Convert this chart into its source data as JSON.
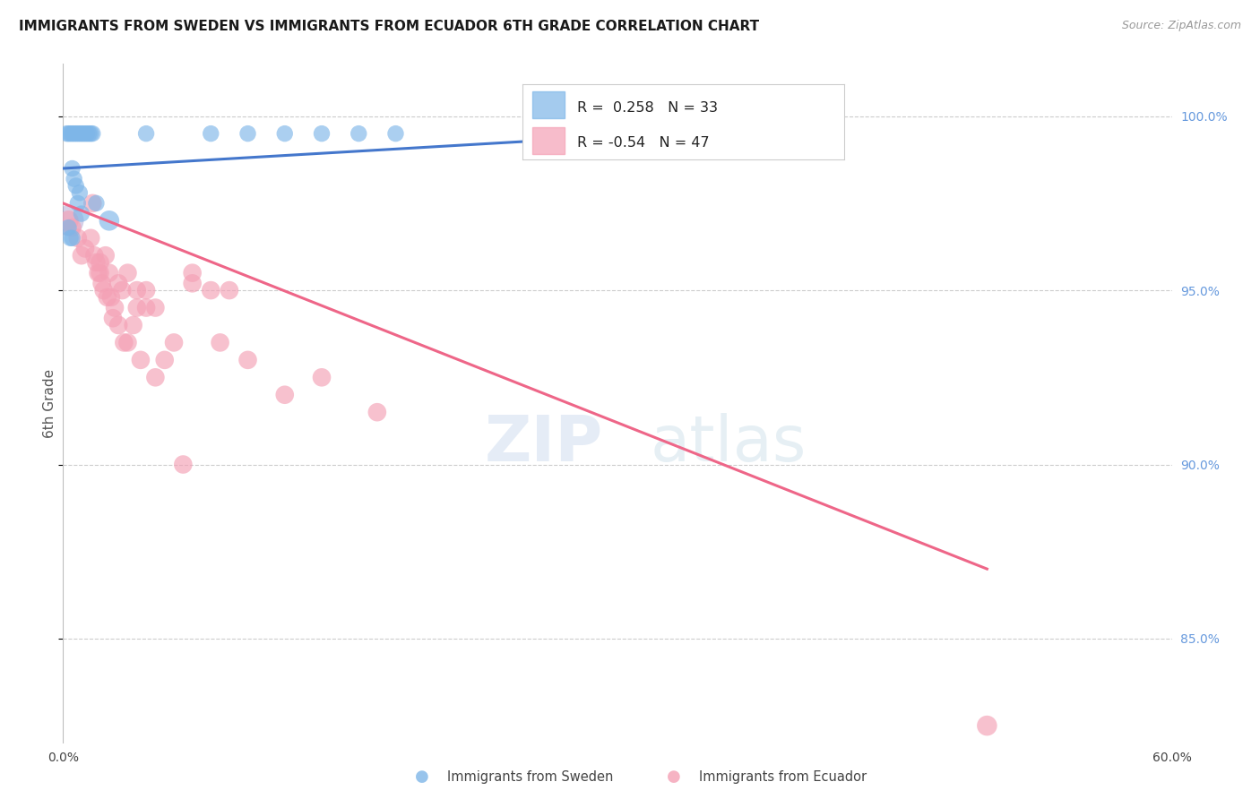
{
  "title": "IMMIGRANTS FROM SWEDEN VS IMMIGRANTS FROM ECUADOR 6TH GRADE CORRELATION CHART",
  "source": "Source: ZipAtlas.com",
  "ylabel": "6th Grade",
  "xlim": [
    0.0,
    60.0
  ],
  "ylim": [
    82.0,
    101.5
  ],
  "yticks": [
    85.0,
    90.0,
    95.0,
    100.0
  ],
  "ytick_labels": [
    "85.0%",
    "90.0%",
    "95.0%",
    "100.0%"
  ],
  "watermark_zip": "ZIP",
  "watermark_atlas": "atlas",
  "sweden_R": 0.258,
  "sweden_N": 33,
  "ecuador_R": -0.54,
  "ecuador_N": 47,
  "sweden_color": "#7EB6E8",
  "ecuador_color": "#F4A0B5",
  "sweden_line_color": "#4477CC",
  "ecuador_line_color": "#EE6688",
  "legend_label_sweden": "Immigrants from Sweden",
  "legend_label_ecuador": "Immigrants from Ecuador",
  "background_color": "#ffffff",
  "grid_color": "#cccccc",
  "right_axis_color": "#6699DD",
  "sweden_x": [
    0.2,
    0.3,
    0.4,
    0.5,
    0.6,
    0.7,
    0.8,
    0.9,
    1.0,
    1.1,
    1.2,
    1.3,
    1.4,
    1.5,
    1.6,
    0.5,
    0.6,
    0.7,
    0.8,
    0.9,
    1.0,
    0.3,
    0.4,
    0.5,
    1.8,
    2.5,
    4.5,
    8.0,
    10.0,
    12.0,
    14.0,
    16.0,
    18.0
  ],
  "sweden_y": [
    99.5,
    99.5,
    99.5,
    99.5,
    99.5,
    99.5,
    99.5,
    99.5,
    99.5,
    99.5,
    99.5,
    99.5,
    99.5,
    99.5,
    99.5,
    98.5,
    98.2,
    98.0,
    97.5,
    97.8,
    97.2,
    96.8,
    96.5,
    96.5,
    97.5,
    97.0,
    99.5,
    99.5,
    99.5,
    99.5,
    99.5,
    99.5,
    99.5
  ],
  "sweden_sizes": [
    8,
    8,
    8,
    8,
    8,
    8,
    8,
    8,
    8,
    8,
    8,
    8,
    8,
    8,
    8,
    8,
    8,
    8,
    8,
    8,
    8,
    8,
    8,
    8,
    8,
    12,
    8,
    8,
    8,
    8,
    8,
    8,
    8
  ],
  "ecuador_x": [
    0.3,
    0.5,
    0.8,
    1.0,
    1.2,
    1.5,
    1.6,
    1.7,
    1.8,
    1.9,
    2.0,
    2.0,
    2.1,
    2.2,
    2.3,
    2.4,
    2.5,
    2.6,
    2.7,
    2.8,
    3.0,
    3.0,
    3.2,
    3.3,
    3.5,
    3.5,
    3.8,
    4.0,
    4.0,
    4.2,
    4.5,
    4.5,
    5.0,
    5.0,
    5.5,
    6.0,
    6.5,
    7.0,
    7.0,
    8.0,
    8.5,
    9.0,
    10.0,
    12.0,
    14.0,
    17.0,
    50.0
  ],
  "ecuador_y": [
    97.0,
    96.8,
    96.5,
    96.0,
    96.2,
    96.5,
    97.5,
    96.0,
    95.8,
    95.5,
    95.5,
    95.8,
    95.2,
    95.0,
    96.0,
    94.8,
    95.5,
    94.8,
    94.2,
    94.5,
    95.2,
    94.0,
    95.0,
    93.5,
    95.5,
    93.5,
    94.0,
    94.5,
    95.0,
    93.0,
    95.0,
    94.5,
    92.5,
    94.5,
    93.0,
    93.5,
    90.0,
    95.2,
    95.5,
    95.0,
    93.5,
    95.0,
    93.0,
    92.0,
    92.5,
    91.5,
    82.5
  ],
  "ecuador_sizes": [
    12,
    10,
    10,
    10,
    10,
    10,
    10,
    10,
    10,
    10,
    10,
    10,
    10,
    10,
    10,
    10,
    10,
    10,
    10,
    10,
    10,
    10,
    10,
    10,
    10,
    10,
    10,
    10,
    10,
    10,
    10,
    10,
    10,
    10,
    10,
    10,
    10,
    10,
    10,
    10,
    10,
    10,
    10,
    10,
    10,
    10,
    12
  ],
  "sweden_trendline_x": [
    0.0,
    42.0
  ],
  "sweden_trendline_y": [
    98.5,
    99.8
  ],
  "ecuador_trendline_x": [
    0.0,
    50.0
  ],
  "ecuador_trendline_y": [
    97.5,
    87.0
  ]
}
